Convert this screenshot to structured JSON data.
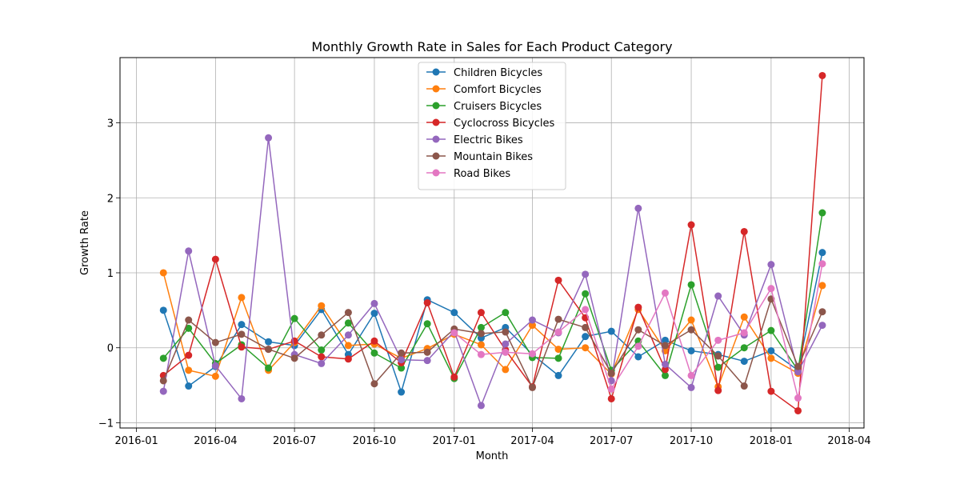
{
  "chart_data": {
    "type": "line",
    "title": "Monthly Growth Rate in Sales for Each Product Category",
    "xlabel": "Month",
    "ylabel": "Growth Rate",
    "x_ticks": [
      "2016-01",
      "2016-04",
      "2016-07",
      "2016-10",
      "2017-01",
      "2017-04",
      "2017-07",
      "2017-10",
      "2018-01",
      "2018-04"
    ],
    "y_ticks": [
      "−1",
      "0",
      "1",
      "2",
      "3"
    ],
    "ylim": [
      -1.07,
      3.87
    ],
    "xlim": [
      "2015-12-13",
      "2018-04-18"
    ],
    "grid": true,
    "legend_position": "top-center",
    "x": [
      "2016-02-01",
      "2016-03-01",
      "2016-04-01",
      "2016-05-01",
      "2016-06-01",
      "2016-07-01",
      "2016-08-01",
      "2016-09-01",
      "2016-10-01",
      "2016-11-01",
      "2016-12-01",
      "2017-01-01",
      "2017-02-01",
      "2017-03-01",
      "2017-04-01",
      "2017-05-01",
      "2017-06-01",
      "2017-07-01",
      "2017-08-01",
      "2017-09-01",
      "2017-10-01",
      "2017-11-01",
      "2017-12-01",
      "2018-01-01",
      "2018-02-01",
      "2018-03-01"
    ],
    "series": [
      {
        "name": "Children Bicycles",
        "color": "#1f77b4",
        "values": [
          0.5,
          -0.51,
          -0.25,
          0.31,
          0.08,
          0.03,
          0.51,
          -0.09,
          0.46,
          -0.59,
          0.64,
          0.47,
          0.13,
          0.27,
          -0.09,
          -0.37,
          0.15,
          0.22,
          -0.12,
          0.1,
          -0.04,
          -0.09,
          -0.18,
          -0.04,
          -0.3,
          1.27
        ]
      },
      {
        "name": "Comfort Bicycles",
        "color": "#ff7f0e",
        "values": [
          1.0,
          -0.3,
          -0.38,
          0.67,
          -0.3,
          0.07,
          0.56,
          0.03,
          0.05,
          -0.14,
          -0.01,
          0.18,
          0.04,
          -0.29,
          0.3,
          -0.02,
          0.0,
          -0.35,
          0.51,
          -0.04,
          0.37,
          -0.52,
          0.41,
          -0.14,
          -0.34,
          0.83
        ]
      },
      {
        "name": "Cruisers Bicycles",
        "color": "#2ca02c",
        "values": [
          -0.14,
          0.26,
          -0.21,
          0.04,
          -0.27,
          0.39,
          -0.03,
          0.33,
          -0.07,
          -0.27,
          0.32,
          -0.41,
          0.27,
          0.47,
          -0.13,
          -0.14,
          0.72,
          -0.3,
          0.09,
          -0.37,
          0.84,
          -0.26,
          0.0,
          0.23,
          -0.3,
          1.8
        ]
      },
      {
        "name": "Cyclocross Bicycles",
        "color": "#d62728",
        "values": [
          -0.37,
          -0.1,
          1.18,
          0.01,
          -0.02,
          0.09,
          -0.12,
          -0.15,
          0.09,
          -0.2,
          0.6,
          -0.39,
          0.47,
          -0.03,
          -0.52,
          0.9,
          0.4,
          -0.68,
          0.54,
          -0.29,
          1.64,
          -0.57,
          1.55,
          -0.58,
          -0.84,
          3.63
        ]
      },
      {
        "name": "Electric Bikes",
        "color": "#9467bd",
        "values": [
          -0.58,
          1.29,
          -0.24,
          -0.68,
          2.8,
          -0.09,
          -0.21,
          0.17,
          0.59,
          -0.16,
          -0.17,
          0.22,
          -0.77,
          0.05,
          0.37,
          0.2,
          0.98,
          -0.44,
          1.86,
          -0.22,
          -0.53,
          0.69,
          0.17,
          1.11,
          -0.32,
          0.3
        ]
      },
      {
        "name": "Mountain Bikes",
        "color": "#8c564b",
        "values": [
          -0.44,
          0.37,
          0.07,
          0.18,
          -0.02,
          -0.14,
          0.17,
          0.47,
          -0.48,
          -0.07,
          -0.06,
          0.25,
          0.19,
          0.21,
          -0.53,
          0.38,
          0.27,
          -0.34,
          0.24,
          0.03,
          0.24,
          -0.11,
          -0.51,
          0.65,
          -0.25,
          0.48
        ]
      },
      {
        "name": "Road Bikes",
        "color": "#e377c2",
        "values": [
          null,
          null,
          null,
          null,
          null,
          null,
          null,
          null,
          null,
          null,
          null,
          0.2,
          -0.09,
          -0.06,
          -0.08,
          0.21,
          0.51,
          -0.55,
          0.02,
          0.73,
          -0.37,
          0.1,
          0.2,
          0.79,
          -0.67,
          1.12
        ]
      }
    ]
  }
}
